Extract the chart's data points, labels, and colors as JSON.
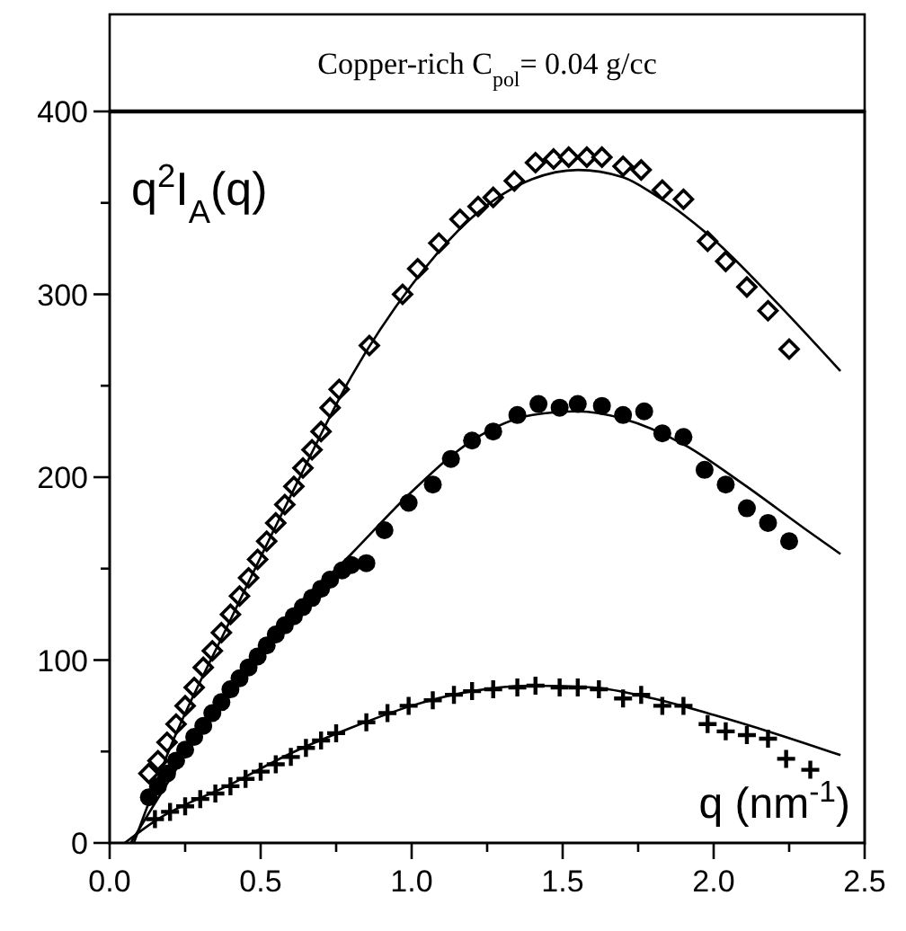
{
  "chart_data": {
    "type": "scatter",
    "title": "Copper-rich C$_{pol}$= 0.04 g/cc",
    "xlabel": "q (nm$^{-1}$)",
    "ylabel": "q$^{2}$I$_{A}$(q)",
    "xlim": [
      0,
      2.5
    ],
    "ylim": [
      0,
      400
    ],
    "xticks": [
      {
        "value": 0,
        "label": "0.0"
      },
      {
        "value": 0.25,
        "label": null
      },
      {
        "value": 0.5,
        "label": "0.5"
      },
      {
        "value": 0.75,
        "label": null
      },
      {
        "value": 1,
        "label": "1.0"
      },
      {
        "value": 1.25,
        "label": null
      },
      {
        "value": 1.5,
        "label": "1.5"
      },
      {
        "value": 1.75,
        "label": null
      },
      {
        "value": 2,
        "label": "2.0"
      },
      {
        "value": 2.25,
        "label": null
      },
      {
        "value": 2.5,
        "label": "2.5"
      }
    ],
    "yticks": [
      0,
      {
        "value": 50,
        "label": null
      },
      100,
      {
        "value": 150,
        "label": null
      },
      200,
      {
        "value": 250,
        "label": null
      },
      300,
      {
        "value": 350,
        "label": null
      },
      400
    ],
    "grid": false,
    "series": [
      {
        "marker": "diamond",
        "color": "#000000",
        "x": [
          0.13,
          0.16,
          0.19,
          0.22,
          0.25,
          0.28,
          0.31,
          0.34,
          0.37,
          0.4,
          0.43,
          0.46,
          0.49,
          0.52,
          0.55,
          0.58,
          0.61,
          0.64,
          0.67,
          0.7,
          0.73,
          0.76,
          0.86,
          0.97,
          1.02,
          1.09,
          1.16,
          1.22,
          1.27,
          1.34,
          1.41,
          1.47,
          1.52,
          1.58,
          1.63,
          1.7,
          1.76,
          1.83,
          1.9,
          1.98,
          2.04,
          2.11,
          2.18,
          2.25
        ],
        "values": [
          38,
          45,
          55,
          65,
          75,
          85,
          96,
          105,
          115,
          125,
          135,
          145,
          155,
          165,
          175,
          185,
          195,
          205,
          215,
          225,
          238,
          248,
          272,
          300,
          314,
          328,
          341,
          348,
          353,
          362,
          372,
          374,
          375,
          375,
          375,
          370,
          368,
          357,
          352,
          329,
          318,
          304,
          291,
          270
        ]
      },
      {
        "marker": "circle",
        "color": "#000000",
        "x": [
          0.13,
          0.16,
          0.19,
          0.22,
          0.25,
          0.28,
          0.31,
          0.34,
          0.37,
          0.4,
          0.43,
          0.46,
          0.49,
          0.52,
          0.55,
          0.58,
          0.61,
          0.64,
          0.67,
          0.7,
          0.73,
          0.77,
          0.8,
          0.85,
          0.91,
          0.99,
          1.07,
          1.13,
          1.2,
          1.27,
          1.35,
          1.42,
          1.49,
          1.55,
          1.63,
          1.7,
          1.77,
          1.83,
          1.9,
          1.97,
          2.04,
          2.11,
          2.18,
          2.25
        ],
        "values": [
          25,
          31,
          38,
          45,
          51,
          58,
          64,
          71,
          77,
          84,
          90,
          96,
          102,
          108,
          114,
          119,
          124,
          129,
          134,
          139,
          144,
          149,
          152,
          153,
          171,
          186,
          196,
          210,
          220,
          225,
          234,
          240,
          238,
          240,
          239,
          234,
          236,
          224,
          222,
          204,
          196,
          183,
          175,
          165
        ]
      },
      {
        "marker": "cross",
        "color": "#000000",
        "x": [
          0.15,
          0.2,
          0.25,
          0.3,
          0.35,
          0.4,
          0.45,
          0.5,
          0.55,
          0.6,
          0.65,
          0.7,
          0.75,
          0.85,
          0.92,
          0.99,
          1.07,
          1.14,
          1.2,
          1.27,
          1.35,
          1.41,
          1.49,
          1.55,
          1.62,
          1.7,
          1.76,
          1.83,
          1.9,
          1.98,
          2.04,
          2.11,
          2.18,
          2.24,
          2.32
        ],
        "values": [
          13,
          17,
          20,
          24,
          27,
          31,
          35,
          39,
          43,
          47,
          52,
          56,
          60,
          66,
          71,
          75,
          78,
          81,
          83,
          84,
          85,
          86,
          85,
          85,
          84,
          79,
          81,
          75,
          75,
          65,
          61,
          59,
          57,
          46,
          40
        ]
      },
      {
        "type": "line",
        "marker": "none",
        "color": "#000000",
        "x": [
          0.08,
          0.2,
          0.4,
          0.6,
          0.8,
          1.0,
          1.2,
          1.4,
          1.55,
          1.7,
          1.8,
          2.0,
          2.2,
          2.42
        ],
        "values": [
          0,
          52,
          122,
          190,
          255,
          305,
          342,
          363,
          368,
          364,
          355,
          330,
          297,
          258
        ]
      },
      {
        "type": "line",
        "marker": "none",
        "color": "#000000",
        "x": [
          0.07,
          0.2,
          0.4,
          0.6,
          0.8,
          1.0,
          1.2,
          1.4,
          1.55,
          1.7,
          1.9,
          2.1,
          2.3,
          2.42
        ],
        "values": [
          0,
          35,
          85,
          125,
          158,
          192,
          220,
          234,
          236,
          232,
          218,
          196,
          172,
          158
        ]
      },
      {
        "type": "line",
        "marker": "none",
        "color": "#000000",
        "x": [
          0.05,
          0.15,
          0.4,
          0.6,
          0.8,
          1.0,
          1.2,
          1.4,
          1.6,
          1.8,
          2.0,
          2.2,
          2.42
        ],
        "values": [
          0,
          12,
          32,
          49,
          63,
          75,
          83,
          86,
          85,
          79,
          70,
          60,
          48
        ]
      }
    ]
  }
}
